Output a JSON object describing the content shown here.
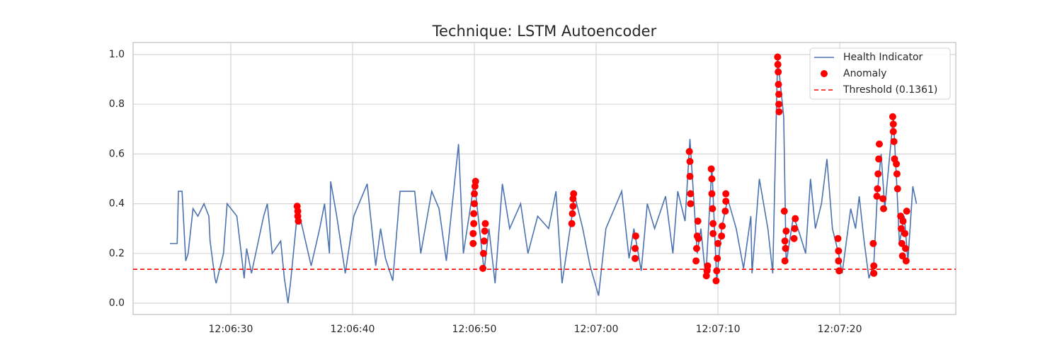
{
  "chart_data": {
    "type": "line",
    "title": "Technique: LSTM Autoencoder",
    "xlim": [
      21.98,
      89.53
    ],
    "ylim": [
      -0.0456,
      1.0484
    ],
    "xticks": [
      {
        "value": 30,
        "label": "12:06:30"
      },
      {
        "value": 40,
        "label": "12:06:40"
      },
      {
        "value": 50,
        "label": "12:06:50"
      },
      {
        "value": 60,
        "label": "12:07:00"
      },
      {
        "value": 70,
        "label": "12:07:10"
      },
      {
        "value": 80,
        "label": "12:07:20"
      }
    ],
    "yticks": [
      {
        "value": 0,
        "label": "0.0"
      },
      0.2,
      0.4,
      0.6,
      0.8,
      {
        "value": 1,
        "label": "1.0"
      }
    ],
    "grid": true,
    "legend": "upper right",
    "series": [
      {
        "name": "Health Indicator",
        "type": "line",
        "color": "#4c72b0",
        "x": [
          25,
          25.6,
          25.7,
          26,
          26.3,
          26.5,
          26.9,
          27.3,
          27.8,
          28.2,
          28.3,
          28.7,
          28.8,
          29.4,
          29.7,
          30.5,
          31.1,
          31.3,
          31.7,
          32.7,
          33,
          33.4,
          34.1,
          34.4,
          34.7,
          34.9,
          35.5,
          35.9,
          36.6,
          37.3,
          37.7,
          38.1,
          38.2,
          38.7,
          39.4,
          40.1,
          41.2,
          41.9,
          42.3,
          42.7,
          43.3,
          43.9,
          45.1,
          45.6,
          46.5,
          47.1,
          47.7,
          48.3,
          48.7,
          49.1,
          50,
          50.8,
          51.2,
          51.7,
          52.3,
          52.9,
          53.8,
          54.4,
          55.2,
          56.1,
          56.7,
          57.2,
          58.1,
          58.2,
          58.9,
          59.5,
          60.2,
          60.8,
          62.1,
          62.7,
          63.1,
          63.7,
          64.2,
          64.8,
          65.7,
          66.3,
          66.7,
          67.3,
          67.7,
          68.3,
          68.6,
          69,
          69.5,
          69.9,
          70.3,
          70.8,
          71.5,
          72.1,
          72.7,
          72.8,
          73.4,
          74.1,
          74.5,
          74.9,
          75.4,
          75.6,
          76.2,
          76.7,
          77.2,
          77.6,
          78,
          78.5,
          78.95,
          79.4,
          79.9,
          80.2,
          80.9,
          81.3,
          81.6,
          82,
          82.4,
          82.8,
          83.1,
          83.4,
          83.7,
          84.4,
          84.7,
          84.9,
          85.3,
          85.6,
          86,
          86.3
        ],
        "values": [
          0.24,
          0.24,
          0.45,
          0.45,
          0.17,
          0.2,
          0.38,
          0.35,
          0.4,
          0.35,
          0.25,
          0.1,
          0.08,
          0.2,
          0.4,
          0.35,
          0.1,
          0.22,
          0.12,
          0.35,
          0.4,
          0.2,
          0.25,
          0.1,
          0,
          0.08,
          0.38,
          0.3,
          0.15,
          0.3,
          0.4,
          0.2,
          0.49,
          0.35,
          0.12,
          0.35,
          0.48,
          0.15,
          0.3,
          0.18,
          0.09,
          0.45,
          0.45,
          0.2,
          0.45,
          0.38,
          0.17,
          0.45,
          0.64,
          0.2,
          0.49,
          0.13,
          0.3,
          0.08,
          0.48,
          0.3,
          0.4,
          0.2,
          0.35,
          0.3,
          0.45,
          0.08,
          0.38,
          0.44,
          0.3,
          0.15,
          0.03,
          0.3,
          0.45,
          0.18,
          0.3,
          0.13,
          0.4,
          0.3,
          0.43,
          0.2,
          0.45,
          0.33,
          0.66,
          0.2,
          0.3,
          0.1,
          0.55,
          0.09,
          0.3,
          0.42,
          0.3,
          0.14,
          0.35,
          0.12,
          0.5,
          0.3,
          0.12,
          0.99,
          0.75,
          0.16,
          0.35,
          0.28,
          0.2,
          0.5,
          0.3,
          0.4,
          0.58,
          0.3,
          0.2,
          0.12,
          0.38,
          0.3,
          0.43,
          0.25,
          0.1,
          0.16,
          0.45,
          0.6,
          0.38,
          0.75,
          0.46,
          0.24,
          0.35,
          0.17,
          0.47,
          0.4
        ]
      },
      {
        "name": "Anomaly",
        "type": "scatter",
        "color": "#ff0000",
        "x": [
          35.45,
          35.5,
          35.5,
          35.55,
          49.9,
          49.9,
          49.95,
          49.95,
          50,
          50,
          50.05,
          50.1,
          50.7,
          50.75,
          50.8,
          50.85,
          50.9,
          58.0,
          58.05,
          58.1,
          58.1,
          58.15,
          63.2,
          63.2,
          63.25,
          67.65,
          67.7,
          67.7,
          67.75,
          67.75,
          68.2,
          68.25,
          68.3,
          68.35,
          68.4,
          69.05,
          69.1,
          69.15,
          69.45,
          69.5,
          69.5,
          69.55,
          69.6,
          69.6,
          69.85,
          69.9,
          69.95,
          70.0,
          70.3,
          70.35,
          70.6,
          70.65,
          70.65,
          74.9,
          74.92,
          74.95,
          74.97,
          75.0,
          75.0,
          75.02,
          75.45,
          75.5,
          75.5,
          75.55,
          75.6,
          76.25,
          76.3,
          76.35,
          79.85,
          79.9,
          79.9,
          79.95,
          82.75,
          82.8,
          82.8,
          83.05,
          83.1,
          83.15,
          83.2,
          83.25,
          83.55,
          83.6,
          84.35,
          84.4,
          84.4,
          84.45,
          84.5,
          84.65,
          84.7,
          84.75,
          85.0,
          85.05,
          85.1,
          85.15,
          85.2,
          85.35,
          85.4,
          85.45,
          85.5
        ],
        "values": [
          0.39,
          0.37,
          0.35,
          0.33,
          0.24,
          0.28,
          0.32,
          0.36,
          0.4,
          0.44,
          0.47,
          0.49,
          0.14,
          0.2,
          0.25,
          0.29,
          0.32,
          0.32,
          0.36,
          0.39,
          0.42,
          0.44,
          0.18,
          0.22,
          0.27,
          0.61,
          0.57,
          0.51,
          0.44,
          0.4,
          0.17,
          0.22,
          0.27,
          0.33,
          0.26,
          0.11,
          0.13,
          0.15,
          0.54,
          0.5,
          0.44,
          0.38,
          0.32,
          0.28,
          0.09,
          0.13,
          0.18,
          0.24,
          0.27,
          0.31,
          0.37,
          0.41,
          0.44,
          0.99,
          0.96,
          0.93,
          0.88,
          0.84,
          0.8,
          0.77,
          0.37,
          0.25,
          0.17,
          0.22,
          0.29,
          0.26,
          0.3,
          0.34,
          0.26,
          0.21,
          0.17,
          0.13,
          0.24,
          0.15,
          0.12,
          0.43,
          0.46,
          0.52,
          0.58,
          0.64,
          0.42,
          0.38,
          0.75,
          0.72,
          0.69,
          0.65,
          0.58,
          0.56,
          0.52,
          0.46,
          0.35,
          0.3,
          0.24,
          0.19,
          0.33,
          0.28,
          0.22,
          0.17,
          0.37
        ]
      },
      {
        "name": "Threshold (0.1361)",
        "type": "hline",
        "color": "#ff0000",
        "value": 0.1361
      }
    ]
  }
}
